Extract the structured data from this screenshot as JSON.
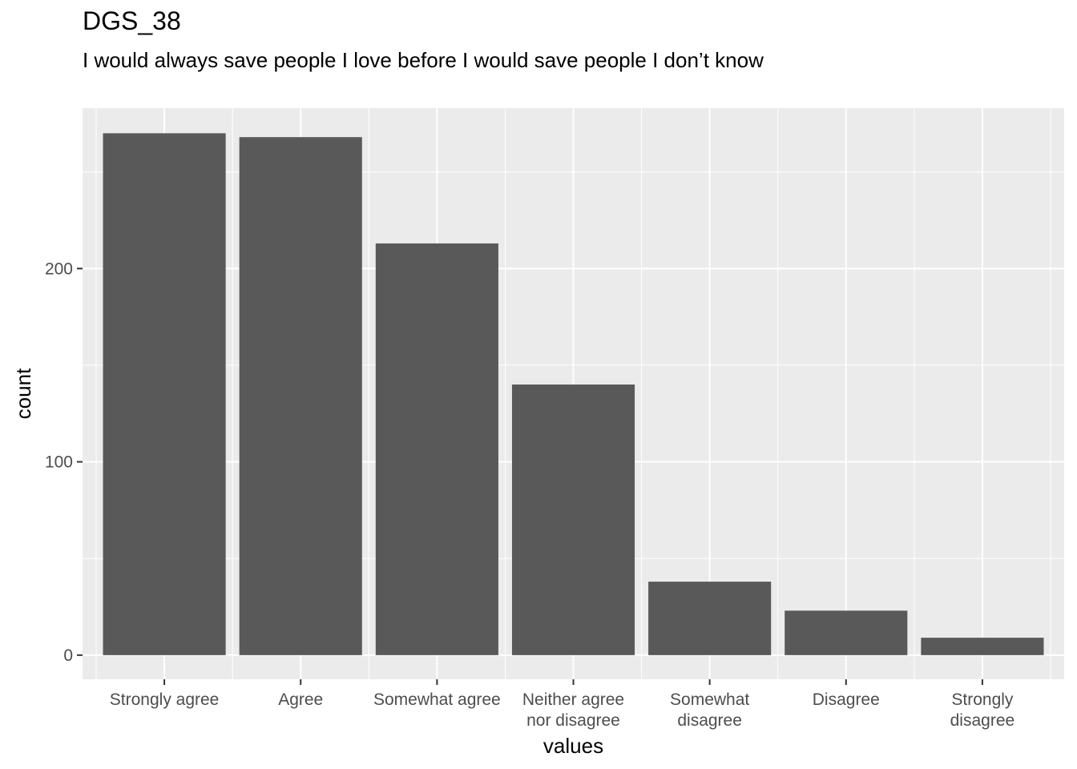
{
  "chart_data": {
    "type": "bar",
    "title": "DGS_38",
    "subtitle": "I would always save people I love before I would save people I don’t know",
    "xlabel": "values",
    "ylabel": "count",
    "categories": [
      [
        "Strongly agree"
      ],
      [
        "Agree"
      ],
      [
        "Somewhat agree"
      ],
      [
        "Neither agree",
        "nor disagree"
      ],
      [
        "Somewhat",
        "disagree"
      ],
      [
        "Disagree"
      ],
      [
        "Strongly",
        "disagree"
      ]
    ],
    "values": [
      270,
      268,
      213,
      140,
      38,
      23,
      9
    ],
    "ylim": [
      -12.5,
      283
    ],
    "yticks": [
      0,
      100,
      200
    ],
    "grid": true,
    "colors": {
      "bar": "#595959",
      "panel": "#ebebeb",
      "grid": "#ffffff"
    }
  }
}
